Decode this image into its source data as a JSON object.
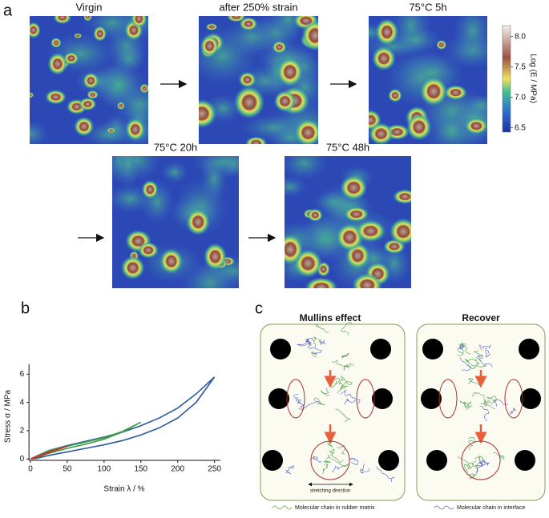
{
  "panel_labels": [
    "a",
    "b",
    "c"
  ],
  "maps": [
    {
      "title": "Virgin"
    },
    {
      "title": "after 250% strain"
    },
    {
      "title": "75°C 5h"
    },
    {
      "title": "75°C 20h"
    },
    {
      "title": "75°C 48h"
    }
  ],
  "colorbar": {
    "label": "Log (E / MPa)",
    "lim": [
      6.43,
      8.18
    ],
    "ticks": [
      6.5,
      {
        "value": 7,
        "label": "7.0"
      },
      7.5,
      {
        "value": 8,
        "label": "8.0"
      }
    ]
  },
  "chart_data": {
    "type": "line",
    "xlabel": "Strain λ / %",
    "ylabel": "Stress σ / MPa",
    "xlim": [
      -2,
      258
    ],
    "ylim": [
      -0.1,
      6.7
    ],
    "xticks": [
      0,
      50,
      100,
      150,
      200,
      250
    ],
    "yticks": [
      0,
      2,
      4,
      6
    ],
    "series": [
      {
        "color": "#2a5a9c",
        "x": [
          0,
          25,
          50,
          75,
          100,
          125,
          150,
          175,
          200,
          225,
          250,
          225,
          200,
          175,
          150,
          125,
          100,
          75,
          50,
          25,
          5
        ],
        "values": [
          0,
          0.6,
          0.95,
          1.25,
          1.55,
          1.9,
          2.35,
          2.9,
          3.6,
          4.6,
          5.8,
          4.0,
          2.9,
          2.2,
          1.7,
          1.3,
          1.0,
          0.75,
          0.5,
          0.25,
          0
        ]
      },
      {
        "color": "#3c9a4a",
        "x": [
          0,
          25,
          50,
          75,
          100,
          125,
          150,
          125,
          100,
          75,
          50,
          25,
          3
        ],
        "values": [
          0,
          0.6,
          0.9,
          1.2,
          1.5,
          1.95,
          2.6,
          1.9,
          1.4,
          1.05,
          0.75,
          0.4,
          0
        ]
      },
      {
        "color": "#c8322a",
        "x": [
          0,
          25,
          50,
          25,
          2
        ],
        "values": [
          0,
          0.5,
          0.9,
          0.45,
          0
        ]
      }
    ]
  },
  "diagram": {
    "titles": [
      "Mullins effect",
      "Recover"
    ],
    "annotation": "stretching direction",
    "legend": [
      "Molecular chain in rubber matrix",
      "Molecular chain in interface"
    ]
  }
}
